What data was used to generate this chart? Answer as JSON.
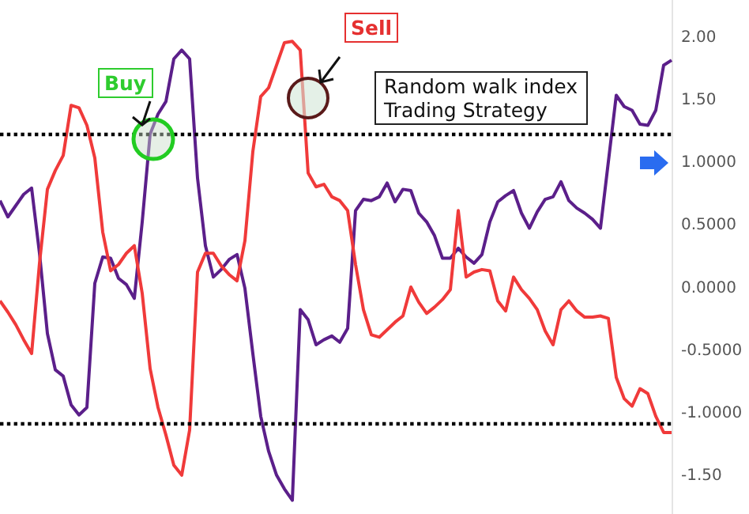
{
  "chart_data": {
    "type": "line",
    "title": "Random walk index\nTrading Strategy",
    "annotations": [
      "Buy",
      "Sell"
    ],
    "categories": [
      null,
      null,
      null,
      null,
      null,
      null,
      null,
      null,
      null,
      null,
      null,
      null,
      null,
      null,
      null,
      null,
      null,
      null,
      null,
      null,
      null,
      null,
      null,
      null,
      null,
      null,
      null,
      null,
      null,
      null,
      null,
      null,
      null,
      null,
      null,
      null,
      null,
      null,
      null,
      null,
      null,
      null,
      null,
      null,
      null,
      null,
      null,
      null,
      null,
      null,
      null,
      null,
      null,
      null,
      null,
      null,
      null,
      null,
      null,
      null,
      null,
      null,
      null,
      null,
      null,
      null,
      null,
      null,
      null,
      null,
      null,
      null,
      null,
      null,
      null,
      null,
      null,
      null,
      null,
      null,
      null,
      null,
      null,
      null,
      null,
      null
    ],
    "series": [
      {
        "color": "#5b1f8a",
        "values": [
          0.7,
          0.57,
          0.66,
          0.75,
          0.8,
          0.28,
          -0.36,
          -0.65,
          -0.7,
          -0.93,
          -1.01,
          -0.95,
          0.04,
          0.25,
          0.24,
          0.08,
          0.03,
          -0.08,
          0.53,
          1.23,
          1.39,
          1.49,
          1.83,
          1.9,
          1.83,
          0.88,
          0.34,
          0.09,
          0.15,
          0.23,
          0.27,
          0.0,
          -0.52,
          -1.02,
          -1.3,
          -1.49,
          -1.6,
          -1.69,
          -0.17,
          -0.25,
          -0.45,
          -0.41,
          -0.38,
          -0.43,
          -0.32,
          0.62,
          0.71,
          0.7,
          0.73,
          0.84,
          0.69,
          0.79,
          0.78,
          0.6,
          0.53,
          0.42,
          0.24,
          0.24,
          0.32,
          0.25,
          0.2,
          0.27,
          0.53,
          0.69,
          0.74,
          0.78,
          0.6,
          0.48,
          0.61,
          0.71,
          0.73,
          0.85,
          0.7,
          0.64,
          0.6,
          0.55,
          0.48,
          1.01,
          1.54,
          1.45,
          1.42,
          1.31,
          1.3,
          1.42,
          1.78,
          1.82
        ]
      },
      {
        "color": "#f03a3a",
        "values": [
          -0.1,
          -0.19,
          -0.29,
          -0.41,
          -0.52,
          0.2,
          0.79,
          0.94,
          1.06,
          1.46,
          1.44,
          1.3,
          1.04,
          0.45,
          0.14,
          0.19,
          0.28,
          0.34,
          -0.04,
          -0.64,
          -0.95,
          -1.17,
          -1.41,
          -1.49,
          -1.13,
          0.13,
          0.28,
          0.28,
          0.18,
          0.11,
          0.06,
          0.38,
          1.09,
          1.53,
          1.6,
          1.78,
          1.96,
          1.97,
          1.9,
          0.92,
          0.81,
          0.83,
          0.73,
          0.7,
          0.62,
          0.19,
          -0.17,
          -0.37,
          -0.39,
          -0.33,
          -0.27,
          -0.22,
          0.01,
          -0.11,
          -0.2,
          -0.15,
          -0.09,
          -0.01,
          0.62,
          0.09,
          0.13,
          0.15,
          0.14,
          -0.1,
          -0.18,
          0.09,
          -0.01,
          -0.08,
          -0.17,
          -0.34,
          -0.45,
          -0.17,
          -0.1,
          -0.18,
          -0.23,
          -0.23,
          -0.22,
          -0.24,
          -0.71,
          -0.88,
          -0.94,
          -0.8,
          -0.84,
          -1.02,
          -1.15,
          -1.15
        ]
      }
    ],
    "ylim": [
      -1.8,
      2.3
    ],
    "yticks": [
      {
        "value": 2,
        "label": "2.00"
      },
      {
        "value": 1.5,
        "label": "1.50"
      },
      {
        "value": 1,
        "label": "1.0000"
      },
      {
        "value": 0.5,
        "label": "0.5000"
      },
      {
        "value": 0,
        "label": "0.0000"
      },
      {
        "value": -0.5,
        "label": "-0.5000"
      },
      {
        "value": -1,
        "label": "-1.0000"
      },
      {
        "value": -1.5,
        "label": "-1.50"
      }
    ],
    "ref_lines": [
      {
        "axis": "y",
        "value": 1.23,
        "color": "#000000",
        "line_style": "dotted"
      },
      {
        "axis": "y",
        "value": -1.08,
        "color": "#000000",
        "line_style": "dotted"
      }
    ],
    "grid": false,
    "line_style": "solid"
  }
}
